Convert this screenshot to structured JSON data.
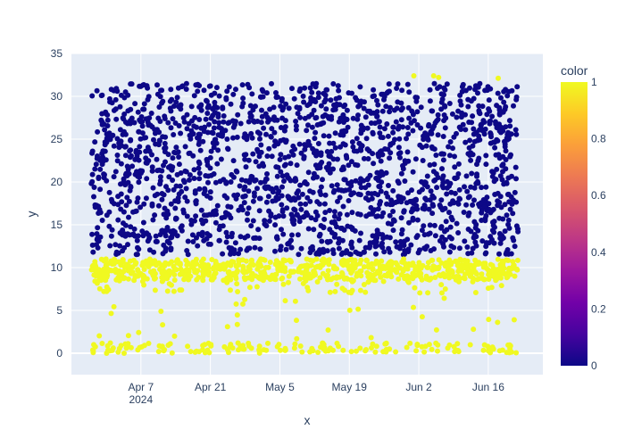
{
  "chart_data": {
    "type": "scatter",
    "title": "",
    "xlabel": "x",
    "ylabel": "y",
    "x_range": [
      "2024-03-24",
      "2024-06-27"
    ],
    "ylim": [
      -2.5,
      35
    ],
    "grid": true,
    "x_ticks": [
      {
        "date": "2024-04-07",
        "label": "Apr 7",
        "sublabel": "2024"
      },
      {
        "date": "2024-04-21",
        "label": "Apr 21",
        "sublabel": ""
      },
      {
        "date": "2024-05-05",
        "label": "May 5",
        "sublabel": ""
      },
      {
        "date": "2024-05-19",
        "label": "May 19",
        "sublabel": ""
      },
      {
        "date": "2024-06-02",
        "label": "Jun 2",
        "sublabel": ""
      },
      {
        "date": "2024-06-16",
        "label": "Jun 16",
        "sublabel": ""
      }
    ],
    "y_ticks": [
      0,
      5,
      10,
      15,
      20,
      25,
      30,
      35
    ],
    "data_extent": {
      "x_start": "2024-03-28",
      "x_end": "2024-06-22"
    },
    "color_scale": {
      "title": "color",
      "min": 0,
      "max": 1,
      "ticks": [
        0,
        0.2,
        0.4,
        0.6,
        0.8,
        1
      ],
      "stops": [
        "#0d0887",
        "#46039f",
        "#7201a8",
        "#9c179e",
        "#bd3786",
        "#d8576b",
        "#ed7953",
        "#fb9f3a",
        "#fdca26",
        "#f0f921"
      ]
    },
    "series": [
      {
        "color_value": 0,
        "color": "#0d0887",
        "y_range": [
          11,
          31.5
        ],
        "main_band": [
          11.5,
          29.5
        ]
      },
      {
        "color_value": 1,
        "color": "#f0f921",
        "y_range": [
          0,
          32.5
        ],
        "main_band": [
          8.5,
          11
        ],
        "low_cluster": [
          0,
          1.2
        ]
      }
    ]
  }
}
